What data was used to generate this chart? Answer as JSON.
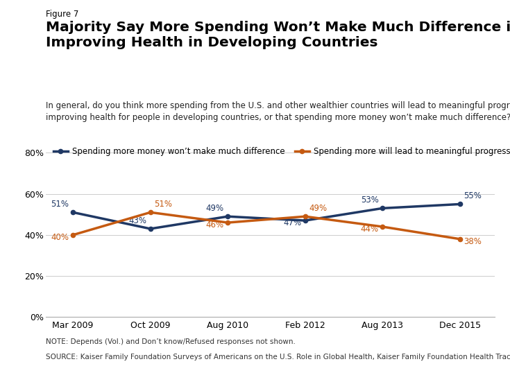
{
  "figure_label": "Figure 7",
  "title": "Majority Say More Spending Won’t Make Much Difference in\nImproving Health in Developing Countries",
  "subtitle": "In general, do you think more spending from the U.S. and other wealthier countries will lead to meaningful progress in\nimproving health for people in developing countries, or that spending more money won’t make much difference?",
  "x_labels": [
    "Mar 2009",
    "Oct 2009",
    "Aug 2010",
    "Feb 2012",
    "Aug 2013",
    "Dec 2015"
  ],
  "x_positions": [
    0,
    1,
    2,
    3,
    4,
    5
  ],
  "series": [
    {
      "name": "Spending more money won’t make much difference",
      "color": "#1f3864",
      "values": [
        51,
        43,
        49,
        47,
        53,
        55
      ],
      "labels": [
        "51%",
        "43%",
        "49%",
        "47%",
        "53%",
        "55%"
      ],
      "label_dx": [
        -0.05,
        -0.05,
        -0.05,
        -0.05,
        -0.05,
        0.05
      ],
      "label_dy": [
        1.8,
        1.8,
        1.8,
        -3.5,
        1.8,
        1.8
      ],
      "label_ha": [
        "right",
        "right",
        "right",
        "right",
        "right",
        "left"
      ]
    },
    {
      "name": "Spending more will lead to meaningful progress",
      "color": "#c55a11",
      "values": [
        40,
        51,
        46,
        49,
        44,
        38
      ],
      "labels": [
        "40%",
        "51%",
        "46%",
        "49%",
        "44%",
        "38%"
      ],
      "label_dx": [
        -0.05,
        0.05,
        -0.05,
        0.05,
        -0.05,
        0.05
      ],
      "label_dy": [
        -3.5,
        1.8,
        -3.5,
        1.8,
        -3.5,
        -3.5
      ],
      "label_ha": [
        "right",
        "left",
        "right",
        "left",
        "right",
        "left"
      ]
    }
  ],
  "ylim": [
    0,
    80
  ],
  "yticks": [
    0,
    20,
    40,
    60,
    80
  ],
  "ytick_labels": [
    "0%",
    "20%",
    "40%",
    "60%",
    "80%"
  ],
  "note": "NOTE: Depends (Vol.) and Don’t know/Refused responses not shown.",
  "source": "SOURCE: Kaiser Family Foundation Surveys of Americans on the U.S. Role in Global Health, Kaiser Family Foundation Health Tracking Polls",
  "background_color": "#ffffff",
  "grid_color": "#cccccc"
}
